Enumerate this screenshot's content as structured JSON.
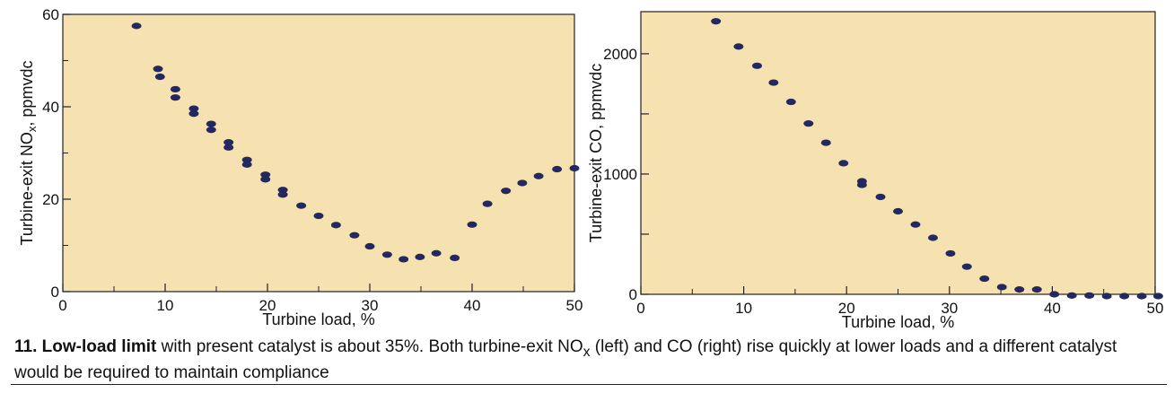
{
  "chart_data": [
    {
      "type": "scatter",
      "ylabel": "Turbine-exit NOx, ppmvdc",
      "ylabel_main": "Turbine-exit NO",
      "ylabel_sub": "x",
      "ylabel_rest": ", ppmvdc",
      "xlabel": "Turbine load, %",
      "xlim": [
        0,
        50
      ],
      "ylim": [
        0,
        60
      ],
      "x_ticks": [
        0,
        10,
        20,
        30,
        40,
        50
      ],
      "y_ticks": [
        0,
        20,
        40,
        60
      ],
      "grid": false,
      "background": "#f6e2b0",
      "marker_color": "#23285e",
      "points": [
        {
          "x": 7.2,
          "y": 57.5
        },
        {
          "x": 9.3,
          "y": 48.2
        },
        {
          "x": 9.5,
          "y": 46.5
        },
        {
          "x": 11.0,
          "y": 43.8
        },
        {
          "x": 11.0,
          "y": 42.0
        },
        {
          "x": 12.8,
          "y": 39.6
        },
        {
          "x": 12.8,
          "y": 38.5
        },
        {
          "x": 14.5,
          "y": 36.3
        },
        {
          "x": 14.5,
          "y": 35.0
        },
        {
          "x": 16.2,
          "y": 32.3
        },
        {
          "x": 16.2,
          "y": 31.2
        },
        {
          "x": 18.0,
          "y": 28.5
        },
        {
          "x": 18.0,
          "y": 27.5
        },
        {
          "x": 19.8,
          "y": 25.3
        },
        {
          "x": 19.8,
          "y": 24.3
        },
        {
          "x": 21.5,
          "y": 22.0
        },
        {
          "x": 21.5,
          "y": 21.0
        },
        {
          "x": 23.3,
          "y": 18.6
        },
        {
          "x": 25.0,
          "y": 16.4
        },
        {
          "x": 26.7,
          "y": 14.4
        },
        {
          "x": 28.5,
          "y": 12.2
        },
        {
          "x": 30.0,
          "y": 9.8
        },
        {
          "x": 31.7,
          "y": 8.0
        },
        {
          "x": 33.3,
          "y": 7.0
        },
        {
          "x": 34.9,
          "y": 7.5
        },
        {
          "x": 36.5,
          "y": 8.3
        },
        {
          "x": 38.3,
          "y": 7.3
        },
        {
          "x": 40.0,
          "y": 14.5
        },
        {
          "x": 41.5,
          "y": 19.0
        },
        {
          "x": 43.3,
          "y": 21.8
        },
        {
          "x": 44.9,
          "y": 23.5
        },
        {
          "x": 46.5,
          "y": 25.0
        },
        {
          "x": 48.3,
          "y": 26.5
        },
        {
          "x": 50.0,
          "y": 26.7
        }
      ]
    },
    {
      "type": "scatter",
      "ylabel": "Turbine-exit CO, ppmvdc",
      "xlabel": "Turbine load, %",
      "xlim": [
        0,
        50
      ],
      "ylim": [
        0,
        2350
      ],
      "x_ticks": [
        0,
        10,
        20,
        30,
        40,
        50
      ],
      "y_ticks_labeled": [
        0,
        1000,
        2000
      ],
      "y_ticks_minor": [
        500,
        1500
      ],
      "grid": false,
      "background": "#f6e2b0",
      "marker_color": "#23285e",
      "points": [
        {
          "x": 7.3,
          "y": 2270
        },
        {
          "x": 9.5,
          "y": 2060
        },
        {
          "x": 11.3,
          "y": 1900
        },
        {
          "x": 12.9,
          "y": 1760
        },
        {
          "x": 14.6,
          "y": 1600
        },
        {
          "x": 16.3,
          "y": 1420
        },
        {
          "x": 18.0,
          "y": 1260
        },
        {
          "x": 19.7,
          "y": 1090
        },
        {
          "x": 21.5,
          "y": 940
        },
        {
          "x": 21.5,
          "y": 910
        },
        {
          "x": 23.3,
          "y": 810
        },
        {
          "x": 25.0,
          "y": 690
        },
        {
          "x": 26.7,
          "y": 580
        },
        {
          "x": 28.4,
          "y": 470
        },
        {
          "x": 30.1,
          "y": 340
        },
        {
          "x": 31.7,
          "y": 230
        },
        {
          "x": 33.4,
          "y": 130
        },
        {
          "x": 35.1,
          "y": 60
        },
        {
          "x": 36.8,
          "y": 40
        },
        {
          "x": 38.5,
          "y": 40
        },
        {
          "x": 40.2,
          "y": 0
        },
        {
          "x": 41.9,
          "y": -10
        },
        {
          "x": 43.6,
          "y": -10
        },
        {
          "x": 45.3,
          "y": -15
        },
        {
          "x": 47.0,
          "y": -15
        },
        {
          "x": 48.7,
          "y": -15
        },
        {
          "x": 50.3,
          "y": -15
        }
      ]
    }
  ],
  "caption": {
    "number_bold": "11. Low-load limit",
    "text1": " with present catalyst is about 35%. Both turbine-exit NO",
    "sub1": "x",
    "text2": " (left) and CO (right) rise quickly at lower loads and a different catalyst would be required to maintain compliance"
  }
}
